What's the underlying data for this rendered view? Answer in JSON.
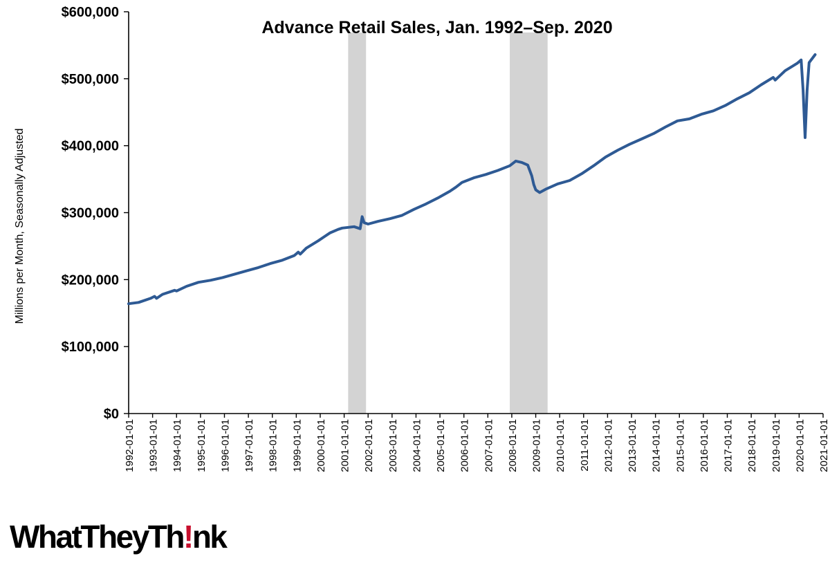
{
  "chart_data": {
    "type": "line",
    "title": "Advance Retail Sales, Jan. 1992–Sep. 2020",
    "ylabel": "Millions per Month, Seasonally Adjusted",
    "xlabel": "",
    "ylim": [
      0,
      600000
    ],
    "y_ticks": [
      0,
      100000,
      200000,
      300000,
      400000,
      500000,
      600000
    ],
    "y_tick_labels": [
      "$0",
      "$100,000",
      "$200,000",
      "$300,000",
      "$400,000",
      "$500,000",
      "$600,000"
    ],
    "x_tick_labels": [
      "1992-01-01",
      "1993-01-01",
      "1994-01-01",
      "1995-01-01",
      "1996-01-01",
      "1997-01-01",
      "1998-01-01",
      "1999-01-01",
      "2000-01-01",
      "2001-01-01",
      "2002-01-01",
      "2003-01-01",
      "2004-01-01",
      "2005-01-01",
      "2006-01-01",
      "2007-01-01",
      "2008-01-01",
      "2009-01-01",
      "2010-01-01",
      "2011-01-01",
      "2012-01-01",
      "2013-01-01",
      "2014-01-01",
      "2015-01-01",
      "2016-01-01",
      "2017-01-01",
      "2018-01-01",
      "2019-01-01",
      "2020-01-01",
      "2021-01-01"
    ],
    "xlim": [
      "1992-01-01",
      "2021-01-01"
    ],
    "recessions": [
      {
        "start": "2001-03-01",
        "end": "2001-11-30"
      },
      {
        "start": "2007-12-01",
        "end": "2009-06-30"
      }
    ],
    "grid": false,
    "series": [
      {
        "color": "#2E5A94",
        "points": [
          [
            "1992-01-01",
            164000
          ],
          [
            "1992-06-01",
            166000
          ],
          [
            "1992-12-01",
            172000
          ],
          [
            "1993-02-01",
            175000
          ],
          [
            "1993-03-01",
            172000
          ],
          [
            "1993-06-01",
            178000
          ],
          [
            "1993-12-01",
            184000
          ],
          [
            "1994-01-01",
            183000
          ],
          [
            "1994-06-01",
            190000
          ],
          [
            "1994-12-01",
            196000
          ],
          [
            "1995-06-01",
            199000
          ],
          [
            "1995-12-01",
            203000
          ],
          [
            "1996-06-01",
            208000
          ],
          [
            "1996-12-01",
            213000
          ],
          [
            "1997-06-01",
            218000
          ],
          [
            "1997-12-01",
            224000
          ],
          [
            "1998-06-01",
            229000
          ],
          [
            "1998-12-01",
            236000
          ],
          [
            "1999-02-01",
            241000
          ],
          [
            "1999-03-01",
            238000
          ],
          [
            "1999-06-01",
            247000
          ],
          [
            "1999-12-01",
            258000
          ],
          [
            "2000-03-01",
            264000
          ],
          [
            "2000-06-01",
            270000
          ],
          [
            "2000-10-01",
            275000
          ],
          [
            "2000-12-01",
            277000
          ],
          [
            "2001-03-01",
            278000
          ],
          [
            "2001-06-01",
            279000
          ],
          [
            "2001-09-01",
            276000
          ],
          [
            "2001-10-01",
            294000
          ],
          [
            "2001-11-01",
            285000
          ],
          [
            "2002-01-01",
            283000
          ],
          [
            "2002-06-01",
            287000
          ],
          [
            "2002-12-01",
            291000
          ],
          [
            "2003-06-01",
            296000
          ],
          [
            "2003-12-01",
            305000
          ],
          [
            "2004-06-01",
            313000
          ],
          [
            "2004-12-01",
            322000
          ],
          [
            "2005-06-01",
            332000
          ],
          [
            "2005-09-01",
            338000
          ],
          [
            "2005-12-01",
            345000
          ],
          [
            "2006-06-01",
            352000
          ],
          [
            "2006-12-01",
            357000
          ],
          [
            "2007-06-01",
            363000
          ],
          [
            "2007-12-01",
            370000
          ],
          [
            "2008-03-01",
            377000
          ],
          [
            "2008-06-01",
            375000
          ],
          [
            "2008-09-01",
            371000
          ],
          [
            "2008-11-01",
            355000
          ],
          [
            "2008-12-01",
            342000
          ],
          [
            "2009-01-01",
            334000
          ],
          [
            "2009-03-01",
            330000
          ],
          [
            "2009-06-01",
            335000
          ],
          [
            "2009-12-01",
            343000
          ],
          [
            "2010-06-01",
            348000
          ],
          [
            "2010-12-01",
            358000
          ],
          [
            "2011-06-01",
            370000
          ],
          [
            "2011-12-01",
            383000
          ],
          [
            "2012-06-01",
            393000
          ],
          [
            "2012-12-01",
            402000
          ],
          [
            "2013-06-01",
            410000
          ],
          [
            "2013-12-01",
            418000
          ],
          [
            "2014-06-01",
            428000
          ],
          [
            "2014-12-01",
            437000
          ],
          [
            "2015-06-01",
            440000
          ],
          [
            "2015-12-01",
            447000
          ],
          [
            "2016-06-01",
            452000
          ],
          [
            "2016-12-01",
            460000
          ],
          [
            "2017-06-01",
            470000
          ],
          [
            "2017-12-01",
            479000
          ],
          [
            "2018-06-01",
            491000
          ],
          [
            "2018-12-01",
            502000
          ],
          [
            "2019-01-01",
            498000
          ],
          [
            "2019-06-01",
            512000
          ],
          [
            "2019-12-01",
            523000
          ],
          [
            "2020-02-01",
            528000
          ],
          [
            "2020-03-01",
            483000
          ],
          [
            "2020-04-01",
            412000
          ],
          [
            "2020-05-01",
            483000
          ],
          [
            "2020-06-01",
            524000
          ],
          [
            "2020-09-01",
            536000
          ]
        ]
      }
    ]
  },
  "logo": {
    "text_before": "WhatTheyTh",
    "mark": "!",
    "text_after": "nk",
    "colors": {
      "text": "#000000",
      "mark": "#C8102E"
    }
  }
}
